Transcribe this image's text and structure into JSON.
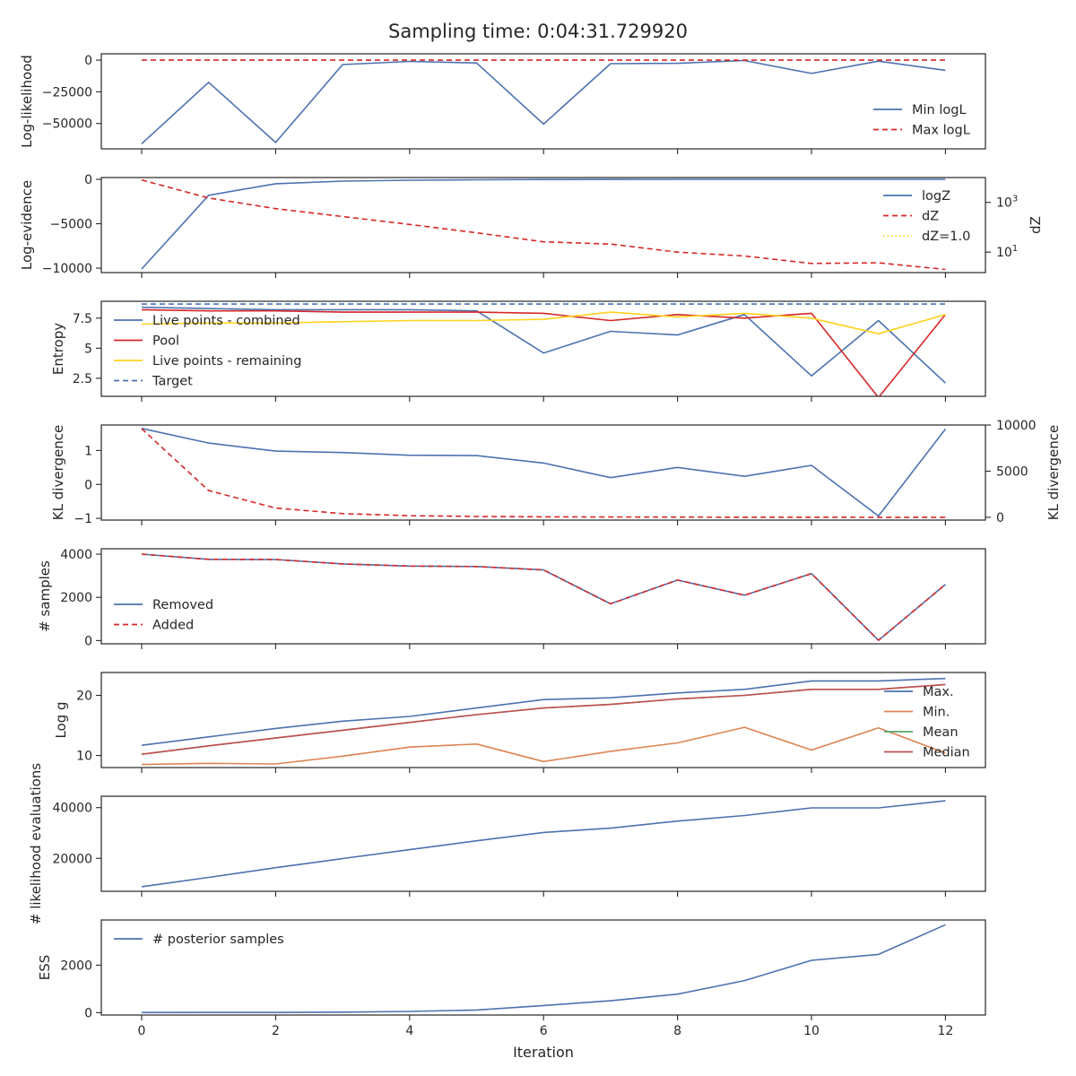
{
  "figure": {
    "title": "Sampling time: 0:04:31.729920",
    "xlabel": "Iteration"
  },
  "colors": {
    "blue": "#4c72b0",
    "red": "#d62728",
    "orange": "#dd8452",
    "green": "#55a868",
    "brownred": "#c44e52",
    "gold": "#ffd21f",
    "axis": "#262626"
  },
  "chart_data": [
    {
      "type": "line",
      "ylabel": "Log-likelihood",
      "x": [
        0,
        1,
        2,
        3,
        4,
        5,
        6,
        7,
        8,
        9,
        10,
        11,
        12
      ],
      "ylim": [
        -70000,
        5000
      ],
      "yticks": [
        0,
        -25000,
        -50000
      ],
      "legend_position": "lower-right",
      "series": [
        {
          "name": "Min logL",
          "style": "solid",
          "color": "#4c72b0",
          "values": [
            -66000,
            -17500,
            -65000,
            -3500,
            -1000,
            -2200,
            -50500,
            -2800,
            -2500,
            -300,
            -10500,
            -800,
            -8000
          ]
        },
        {
          "name": "Max logL",
          "style": "dashed",
          "color": "#d62728",
          "values": [
            0,
            0,
            0,
            0,
            0,
            0,
            0,
            0,
            0,
            0,
            0,
            0,
            0
          ]
        }
      ]
    },
    {
      "type": "line",
      "ylabel": "Log-evidence",
      "y2label": "dZ",
      "y2scale": "log",
      "x": [
        0,
        1,
        2,
        3,
        4,
        5,
        6,
        7,
        8,
        9,
        10,
        11,
        12
      ],
      "ylim": [
        -10500,
        200
      ],
      "yticks": [
        0,
        -5000,
        -10000
      ],
      "y2lim": [
        1.5,
        10000
      ],
      "y2ticks": [
        {
          "value": 1000,
          "label": "10^3"
        },
        {
          "value": 10,
          "label": "10^1"
        }
      ],
      "legend_position": "upper-right",
      "series": [
        {
          "name": "logZ",
          "style": "solid",
          "color": "#4c72b0",
          "axis": "left",
          "values": [
            -10100,
            -1800,
            -500,
            -200,
            -100,
            -50,
            -20,
            -10,
            -5,
            -5,
            -5,
            -5,
            -5
          ]
        },
        {
          "name": "dZ",
          "style": "dashed",
          "color": "#d62728",
          "axis": "right",
          "values": [
            8000,
            1500,
            560,
            270,
            130,
            60,
            26,
            21,
            10,
            7,
            3.5,
            3.7,
            2
          ]
        },
        {
          "name": "dZ=1.0",
          "style": "dotted",
          "color": "#ffd21f",
          "axis": "right",
          "values": [
            1,
            1,
            1,
            1,
            1,
            1,
            1,
            1,
            1,
            1,
            1,
            1,
            1
          ]
        }
      ]
    },
    {
      "type": "line",
      "ylabel": "Entropy",
      "x": [
        0,
        1,
        2,
        3,
        4,
        5,
        6,
        7,
        8,
        9,
        10,
        11,
        12
      ],
      "ylim": [
        1.0,
        8.9
      ],
      "yticks": [
        7.5,
        5.0,
        2.5
      ],
      "legend_position": "upper-left",
      "series": [
        {
          "name": "Live points - combined",
          "style": "solid",
          "color": "#4c72b0",
          "values": [
            8.4,
            8.3,
            8.2,
            8.2,
            8.2,
            8.1,
            4.6,
            6.4,
            6.1,
            7.8,
            2.7,
            7.3,
            2.1
          ]
        },
        {
          "name": "Pool",
          "style": "solid",
          "color": "#d62728",
          "values": [
            8.2,
            8.1,
            8.1,
            8.0,
            8.0,
            8.0,
            7.9,
            7.3,
            7.8,
            7.5,
            7.9,
            0.9,
            7.8
          ]
        },
        {
          "name": "Live points - remaining",
          "style": "solid",
          "color": "#ffd21f",
          "values": [
            7.0,
            7.1,
            7.1,
            7.2,
            7.3,
            7.3,
            7.4,
            8.0,
            7.6,
            7.9,
            7.5,
            6.2,
            7.8
          ]
        },
        {
          "name": "Target",
          "style": "dashed",
          "color": "#4c72b0",
          "values": [
            8.67,
            8.67,
            8.67,
            8.67,
            8.67,
            8.67,
            8.67,
            8.67,
            8.67,
            8.67,
            8.67,
            8.67,
            8.67
          ]
        }
      ]
    },
    {
      "type": "line",
      "ylabel": "KL divergence",
      "y2label": "KL divergence",
      "x": [
        0,
        1,
        2,
        3,
        4,
        5,
        6,
        7,
        8,
        9,
        10,
        11,
        12
      ],
      "ylim": [
        -1.05,
        1.75
      ],
      "yticks": [
        1,
        0,
        -1
      ],
      "y2lim": [
        -300,
        10000
      ],
      "y2ticks": [
        {
          "value": 10000,
          "label": "10000"
        },
        {
          "value": 5000,
          "label": "5000"
        },
        {
          "value": 0,
          "label": "0"
        }
      ],
      "series": [
        {
          "axis": "left",
          "style": "solid",
          "color": "#4c72b0",
          "values": [
            1.65,
            1.22,
            0.98,
            0.94,
            0.86,
            0.85,
            0.63,
            0.2,
            0.5,
            0.24,
            0.56,
            -0.93,
            1.63
          ]
        },
        {
          "axis": "right",
          "style": "dashed",
          "color": "#d62728",
          "values": [
            9600,
            2900,
            1000,
            400,
            180,
            90,
            45,
            30,
            20,
            12,
            8,
            5,
            3
          ]
        }
      ]
    },
    {
      "type": "line",
      "ylabel": "# samples",
      "x": [
        0,
        1,
        2,
        3,
        4,
        5,
        6,
        7,
        8,
        9,
        10,
        11,
        12
      ],
      "ylim": [
        -150,
        4250
      ],
      "yticks": [
        4000,
        2000,
        0
      ],
      "legend_position": "center-left",
      "series": [
        {
          "name": "Removed",
          "style": "solid",
          "color": "#4c72b0",
          "values": [
            4000,
            3760,
            3750,
            3550,
            3450,
            3430,
            3270,
            1700,
            2800,
            2100,
            3100,
            10,
            2600
          ]
        },
        {
          "name": "Added",
          "style": "dashed",
          "color": "#d62728",
          "values": [
            4000,
            3760,
            3750,
            3550,
            3450,
            3430,
            3270,
            1700,
            2800,
            2100,
            3100,
            10,
            2600
          ]
        }
      ]
    },
    {
      "type": "line",
      "ylabel": "Log g",
      "x": [
        0,
        1,
        2,
        3,
        4,
        5,
        6,
        7,
        8,
        9,
        10,
        11,
        12
      ],
      "ylim": [
        8.0,
        23.8
      ],
      "yticks": [
        20,
        10
      ],
      "legend_position": "right",
      "series": [
        {
          "name": "Max.",
          "style": "solid",
          "color": "#4c72b0",
          "values": [
            11.7,
            13.1,
            14.5,
            15.7,
            16.5,
            17.9,
            19.3,
            19.6,
            20.4,
            21.0,
            22.4,
            22.4,
            22.8
          ]
        },
        {
          "name": "Min.",
          "style": "solid",
          "color": "#dd8452",
          "values": [
            8.5,
            8.7,
            8.6,
            9.9,
            11.4,
            11.9,
            9.0,
            10.7,
            12.1,
            14.7,
            10.9,
            14.6,
            10.4
          ]
        },
        {
          "name": "Mean",
          "style": "solid",
          "color": "#55a868",
          "values": [
            10.2,
            11.6,
            12.9,
            14.2,
            15.5,
            16.8,
            17.9,
            18.5,
            19.4,
            20.0,
            21.0,
            21.0,
            21.8
          ]
        },
        {
          "name": "Median",
          "style": "solid",
          "color": "#c44e52",
          "values": [
            10.2,
            11.6,
            12.9,
            14.2,
            15.5,
            16.8,
            17.9,
            18.5,
            19.4,
            20.0,
            21.0,
            21.0,
            21.8
          ]
        }
      ]
    },
    {
      "type": "line",
      "ylabel": "# likelihood evaluations",
      "x": [
        0,
        1,
        2,
        3,
        4,
        5,
        6,
        7,
        8,
        9,
        10,
        11,
        12
      ],
      "ylim": [
        7000,
        44500
      ],
      "yticks": [
        40000,
        20000
      ],
      "series": [
        {
          "style": "solid",
          "color": "#4c72b0",
          "values": [
            8800,
            12500,
            16300,
            19900,
            23400,
            26900,
            30200,
            31900,
            34700,
            36900,
            39900,
            39900,
            42700
          ]
        }
      ]
    },
    {
      "type": "line",
      "ylabel": "ESS",
      "x": [
        0,
        1,
        2,
        3,
        4,
        5,
        6,
        7,
        8,
        9,
        10,
        11,
        12
      ],
      "ylim": [
        -100,
        3900
      ],
      "yticks": [
        2000,
        0
      ],
      "legend_position": "upper-left",
      "series": [
        {
          "name": "# posterior samples",
          "style": "solid",
          "color": "#4c72b0",
          "values": [
            5,
            8,
            10,
            20,
            50,
            110,
            300,
            500,
            780,
            1350,
            2200,
            2450,
            3700
          ]
        }
      ]
    }
  ]
}
